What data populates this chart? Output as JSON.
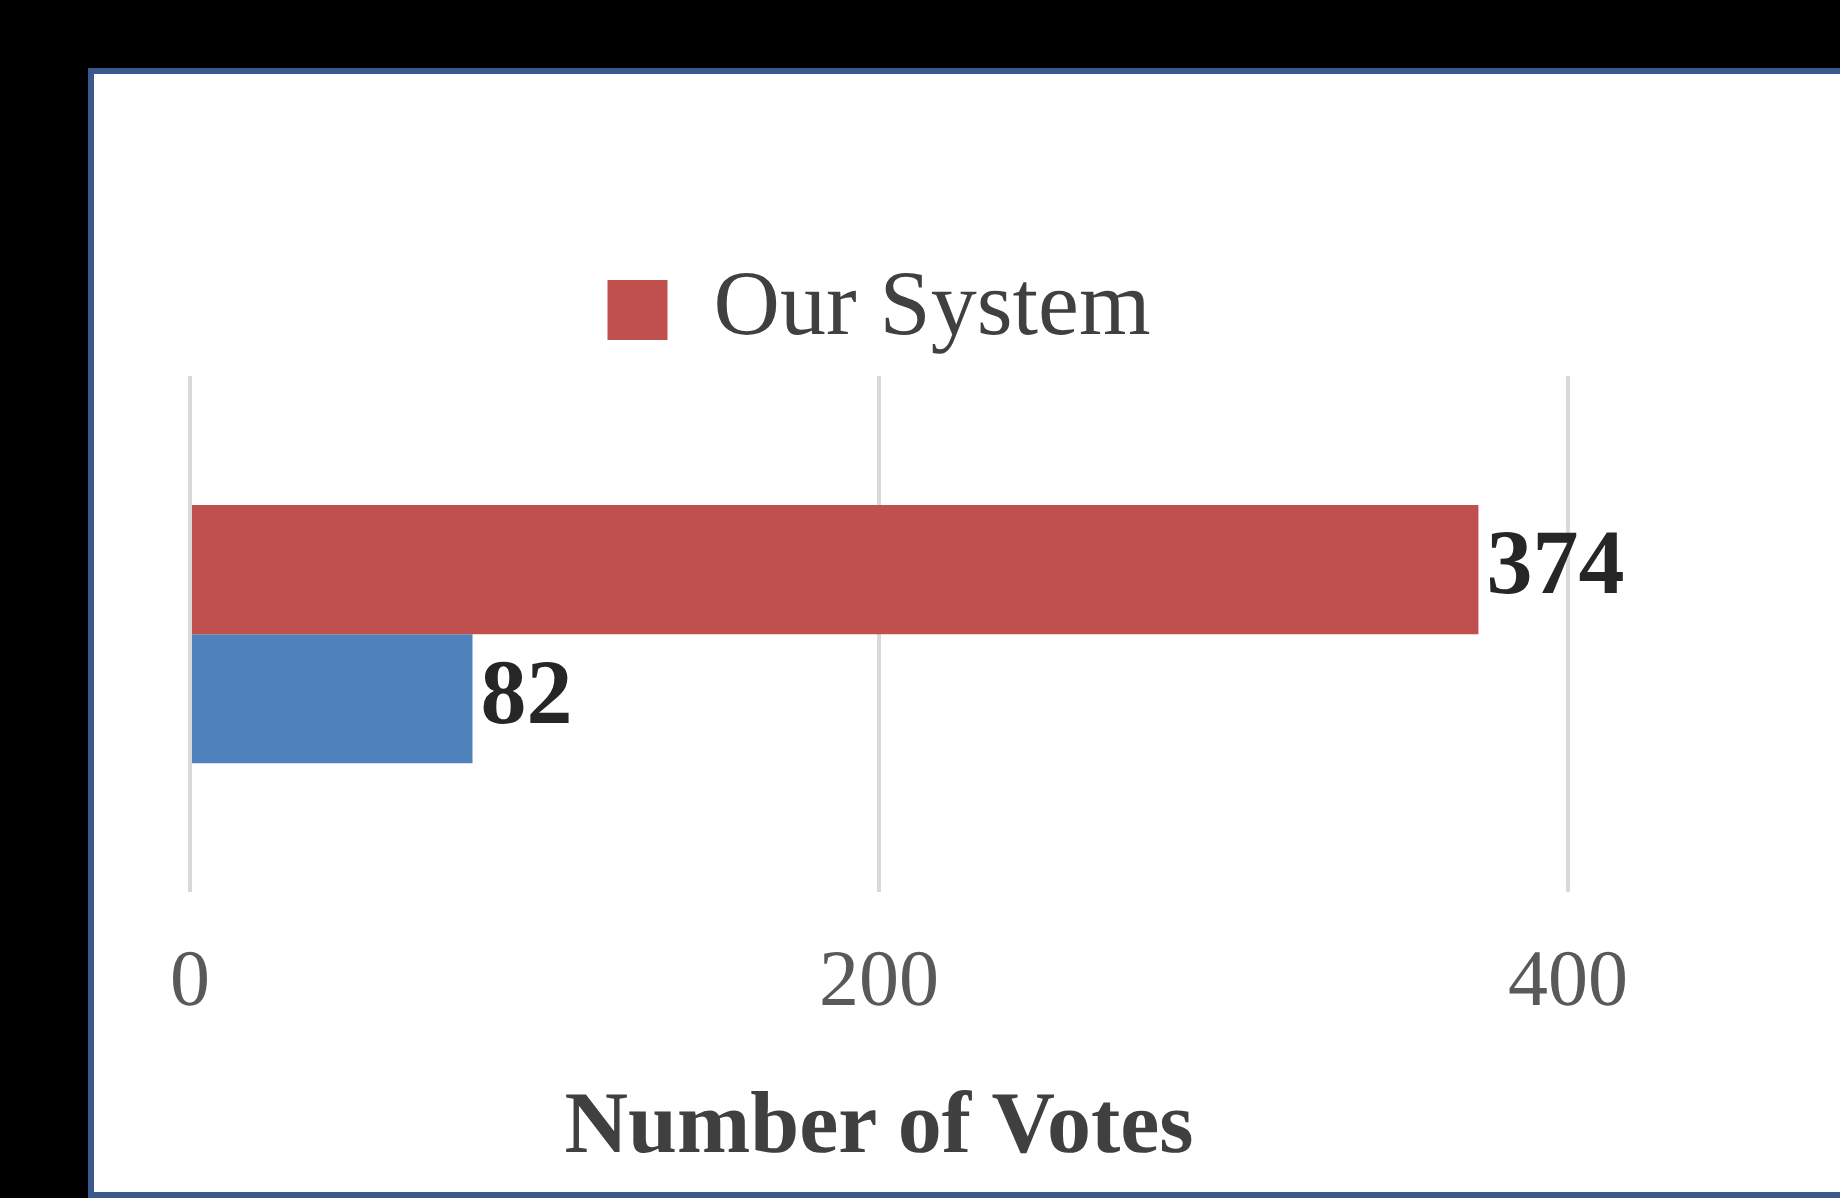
{
  "chart_data": {
    "type": "bar",
    "orientation": "horizontal",
    "categories": [
      null
    ],
    "series": [
      {
        "name": "Our System",
        "color": "#c0504d",
        "values": [
          374
        ]
      },
      {
        "color": "#4f81bd",
        "values": [
          82
        ]
      }
    ],
    "xlabel": "Number of Votes",
    "xlim": [
      0,
      400
    ],
    "xticks": [
      0,
      200,
      400
    ],
    "grid": "x",
    "legend": "top",
    "data_labels": true,
    "tick_labels": "x"
  }
}
